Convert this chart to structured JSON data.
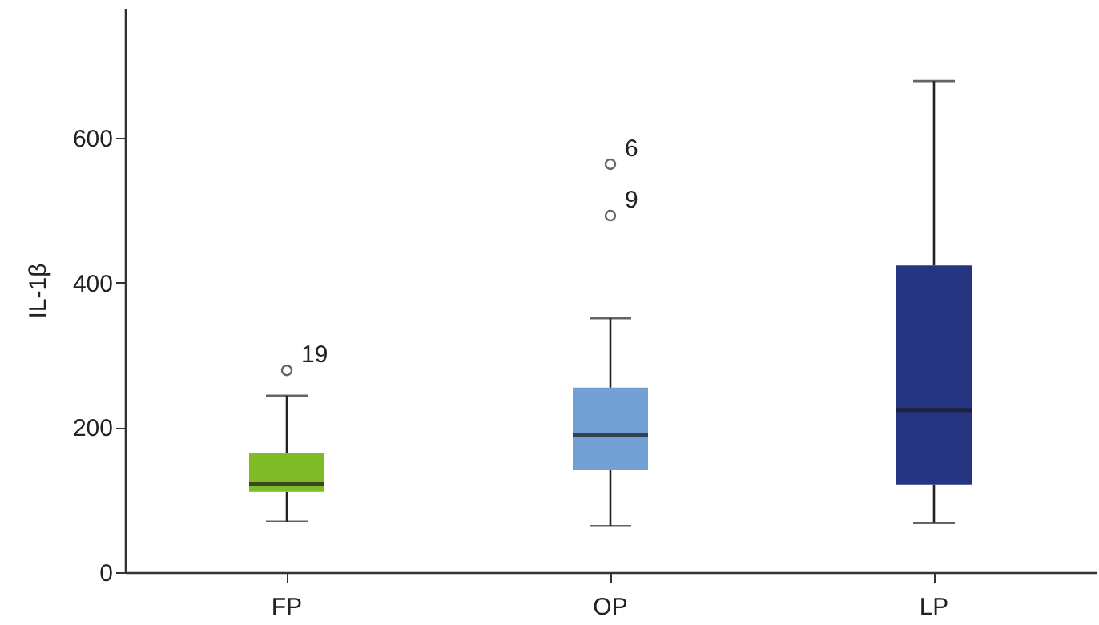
{
  "chart_data": {
    "type": "box",
    "ylabel": "IL-1β",
    "categories": [
      "FP",
      "OP",
      "LP"
    ],
    "colors": [
      "#7fba27",
      "#729fd4",
      "#253582"
    ],
    "boxes": [
      {
        "low": 70,
        "q1": 111,
        "median": 122,
        "q3": 165,
        "high": 244,
        "outliers": [
          279
        ]
      },
      {
        "low": 64,
        "q1": 141,
        "median": 190,
        "q3": 255,
        "high": 351,
        "outliers": [
          493,
          564
        ]
      },
      {
        "low": 68,
        "q1": 121,
        "median": 224,
        "q3": 424,
        "high": 679
      }
    ],
    "annotations": [
      "19",
      "9",
      "6"
    ],
    "ylim": [
      0,
      780
    ],
    "yticks": [
      0,
      200,
      400,
      600
    ]
  }
}
